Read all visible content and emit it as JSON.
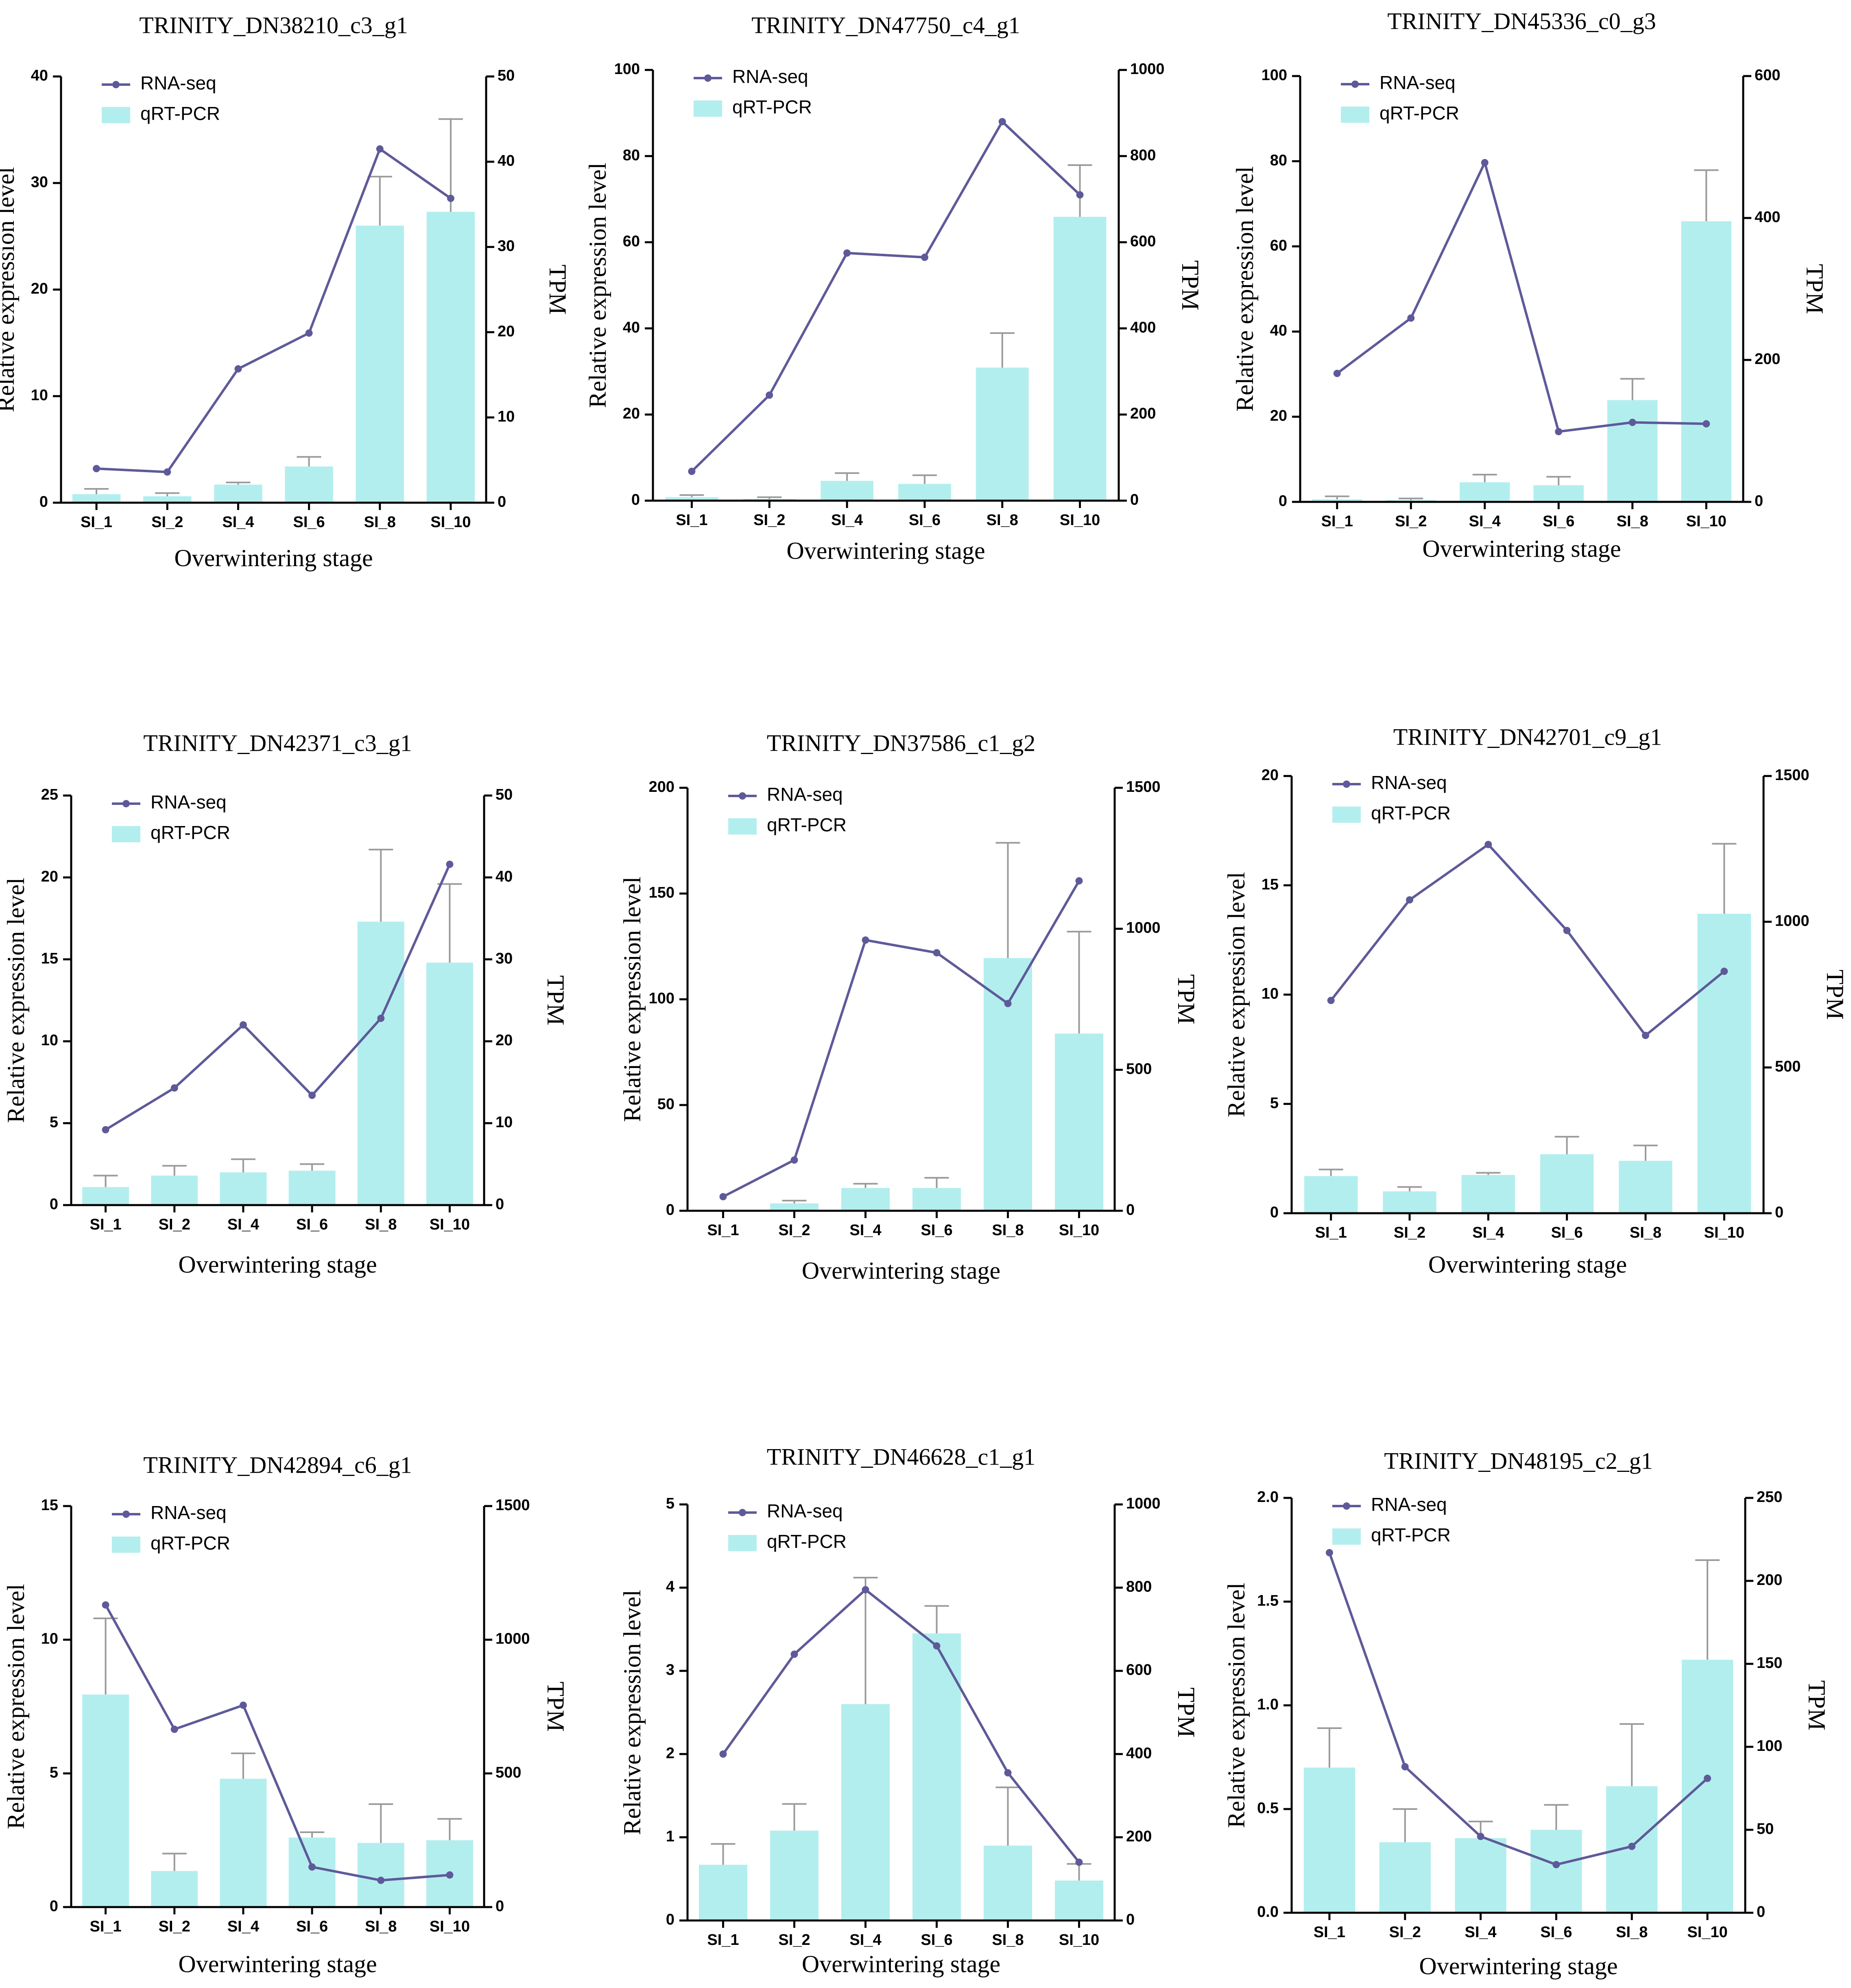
{
  "figure": {
    "colors": {
      "bar": "#b3eeee",
      "line": "#5e5a99",
      "axis": "#000000",
      "error": "#9a9a9a"
    }
  },
  "chart_data": [
    {
      "type": "bar",
      "title": "TRINITY_DN38210_c3_g1",
      "xlabel": "Overwintering stage",
      "ylabel": "Relative expression level",
      "y2label": "TPM",
      "legend": {
        "line": "RNA-seq",
        "bar": "qRT-PCR",
        "placement": "top-left"
      },
      "categories": [
        "SI_1",
        "SI_2",
        "SI_4",
        "SI_6",
        "SI_8",
        "SI_10"
      ],
      "ylim": [
        0,
        40
      ],
      "yticks": [
        "0",
        "10",
        "20",
        "30",
        "40"
      ],
      "y2lim": [
        0,
        50
      ],
      "y2ticks": [
        "0",
        "10",
        "20",
        "30",
        "40",
        "50"
      ],
      "series": [
        {
          "name": "qRT-PCR",
          "axis": "left",
          "values": [
            0.8,
            0.6,
            1.7,
            3.4,
            26.0,
            27.3
          ],
          "errors": [
            1.3,
            0.9,
            1.9,
            4.3,
            30.6,
            36.0
          ]
        },
        {
          "name": "RNA-seq",
          "axis": "right",
          "values": [
            4.0,
            3.6,
            15.7,
            19.9,
            41.5,
            35.7
          ]
        }
      ]
    },
    {
      "type": "bar",
      "title": "TRINITY_DN47750_c4_g1",
      "xlabel": "Overwintering stage",
      "ylabel": "Relative expression level",
      "y2label": "TPM",
      "legend": {
        "line": "RNA-seq",
        "bar": "qRT-PCR",
        "placement": "top-left"
      },
      "categories": [
        "SI_1",
        "SI_2",
        "SI_4",
        "SI_6",
        "SI_8",
        "SI_10"
      ],
      "ylim": [
        0,
        100
      ],
      "yticks": [
        "0",
        "20",
        "40",
        "60",
        "80",
        "100"
      ],
      "y2lim": [
        0,
        1000
      ],
      "y2ticks": [
        "0",
        "200",
        "400",
        "600",
        "800",
        "1000"
      ],
      "series": [
        {
          "name": "qRT-PCR",
          "axis": "left",
          "values": [
            0.8,
            0.4,
            4.6,
            3.9,
            30.9,
            65.9
          ],
          "errors": [
            1.3,
            0.8,
            6.4,
            5.9,
            38.9,
            77.9
          ]
        },
        {
          "name": "RNA-seq",
          "axis": "right",
          "values": [
            68,
            245,
            575,
            565,
            880,
            710
          ]
        }
      ]
    },
    {
      "type": "bar",
      "title": "TRINITY_DN45336_c0_g3",
      "xlabel": "Overwintering stage",
      "ylabel": "Relative expression level",
      "y2label": "TPM",
      "legend": {
        "line": "RNA-seq",
        "bar": "qRT-PCR",
        "placement": "top-left"
      },
      "categories": [
        "SI_1",
        "SI_2",
        "SI_4",
        "SI_6",
        "SI_8",
        "SI_10"
      ],
      "ylim": [
        0,
        100
      ],
      "yticks": [
        "0",
        "20",
        "40",
        "60",
        "80",
        "100"
      ],
      "y2lim": [
        0,
        600
      ],
      "y2ticks": [
        "0",
        "200",
        "400",
        "600"
      ],
      "series": [
        {
          "name": "qRT-PCR",
          "axis": "left",
          "values": [
            0.6,
            0.4,
            4.6,
            3.9,
            23.9,
            65.9
          ],
          "errors": [
            1.3,
            0.8,
            6.4,
            5.9,
            28.9,
            77.9
          ]
        },
        {
          "name": "RNA-seq",
          "axis": "right",
          "values": [
            181,
            259,
            478,
            99,
            112,
            110
          ]
        }
      ]
    },
    {
      "type": "bar",
      "title": "TRINITY_DN42371_c3_g1",
      "xlabel": "Overwintering stage",
      "ylabel": "Relative expression level",
      "y2label": "TPM",
      "legend": {
        "line": "RNA-seq",
        "bar": "qRT-PCR",
        "placement": "top-left"
      },
      "categories": [
        "SI_1",
        "SI_2",
        "SI_4",
        "SI_6",
        "SI_8",
        "SI_10"
      ],
      "ylim": [
        0,
        25
      ],
      "yticks": [
        "0",
        "5",
        "10",
        "15",
        "20",
        "25"
      ],
      "y2lim": [
        0,
        50
      ],
      "y2ticks": [
        "0",
        "10",
        "20",
        "30",
        "40",
        "50"
      ],
      "series": [
        {
          "name": "qRT-PCR",
          "axis": "left",
          "values": [
            1.1,
            1.8,
            2.0,
            2.1,
            17.3,
            14.8
          ],
          "errors": [
            1.8,
            2.4,
            2.8,
            2.5,
            21.7,
            19.6
          ]
        },
        {
          "name": "RNA-seq",
          "axis": "right",
          "values": [
            9.2,
            14.3,
            22.0,
            13.4,
            22.8,
            41.6
          ]
        }
      ]
    },
    {
      "type": "bar",
      "title": "TRINITY_DN37586_c1_g2",
      "xlabel": "Overwintering stage",
      "ylabel": "Relative expression level",
      "y2label": "TPM",
      "legend": {
        "line": "RNA-seq",
        "bar": "qRT-PCR",
        "placement": "top-left"
      },
      "categories": [
        "SI_1",
        "SI_2",
        "SI_4",
        "SI_6",
        "SI_8",
        "SI_10"
      ],
      "ylim": [
        0,
        200
      ],
      "yticks": [
        "0",
        "50",
        "100",
        "150",
        "200"
      ],
      "y2lim": [
        0,
        1500
      ],
      "y2ticks": [
        "0",
        "500",
        "1000",
        "1500"
      ],
      "series": [
        {
          "name": "qRT-PCR",
          "axis": "left",
          "values": [
            0,
            3.5,
            10.8,
            10.8,
            119.5,
            83.8
          ],
          "errors": [
            0,
            4.8,
            12.8,
            15.6,
            174.0,
            132.0
          ]
        },
        {
          "name": "RNA-seq",
          "axis": "right",
          "values": [
            50,
            180,
            960,
            915,
            735,
            1170
          ]
        }
      ]
    },
    {
      "type": "bar",
      "title": "TRINITY_DN42701_c9_g1",
      "xlabel": "Overwintering stage",
      "ylabel": "Relative expression level",
      "y2label": "TPM",
      "legend": {
        "line": "RNA-seq",
        "bar": "qRT-PCR",
        "placement": "top-left"
      },
      "categories": [
        "SI_1",
        "SI_2",
        "SI_4",
        "SI_6",
        "SI_8",
        "SI_10"
      ],
      "ylim": [
        0,
        20
      ],
      "yticks": [
        "0",
        "5",
        "10",
        "15",
        "20"
      ],
      "y2lim": [
        0,
        1500
      ],
      "y2ticks": [
        "0",
        "500",
        "1000",
        "1500"
      ],
      "series": [
        {
          "name": "qRT-PCR",
          "axis": "left",
          "values": [
            1.7,
            1.0,
            1.75,
            2.7,
            2.4,
            13.7
          ],
          "errors": [
            2.0,
            1.2,
            1.85,
            3.5,
            3.1,
            16.9
          ]
        },
        {
          "name": "RNA-seq",
          "axis": "right",
          "values": [
            730,
            1075,
            1265,
            970,
            610,
            830
          ]
        }
      ]
    },
    {
      "type": "bar",
      "title": "TRINITY_DN42894_c6_g1",
      "xlabel": "Overwintering stage",
      "ylabel": "Relative expression level",
      "y2label": "TPM",
      "legend": {
        "line": "RNA-seq",
        "bar": "qRT-PCR",
        "placement": "top-left"
      },
      "categories": [
        "SI_1",
        "SI_2",
        "SI_4",
        "SI_6",
        "SI_8",
        "SI_10"
      ],
      "ylim": [
        0,
        15
      ],
      "yticks": [
        "0",
        "5",
        "10",
        "15"
      ],
      "y2lim": [
        0,
        1500
      ],
      "y2ticks": [
        "0",
        "500",
        "1000",
        "1500"
      ],
      "series": [
        {
          "name": "qRT-PCR",
          "axis": "left",
          "values": [
            7.95,
            1.35,
            4.8,
            2.6,
            2.4,
            2.5
          ],
          "errors": [
            10.8,
            2.0,
            5.75,
            2.8,
            3.85,
            3.3
          ]
        },
        {
          "name": "RNA-seq",
          "axis": "right",
          "values": [
            1130,
            665,
            755,
            150,
            100,
            120
          ]
        }
      ]
    },
    {
      "type": "bar",
      "title": "TRINITY_DN46628_c1_g1",
      "xlabel": "Overwintering stage",
      "ylabel": "Relative expression level",
      "y2label": "TPM",
      "legend": {
        "line": "RNA-seq",
        "bar": "qRT-PCR",
        "placement": "top-left"
      },
      "categories": [
        "SI_1",
        "SI_2",
        "SI_4",
        "SI_6",
        "SI_8",
        "SI_10"
      ],
      "ylim": [
        0,
        5
      ],
      "yticks": [
        "0",
        "1",
        "2",
        "3",
        "4",
        "5"
      ],
      "y2lim": [
        0,
        1000
      ],
      "y2ticks": [
        "0",
        "200",
        "400",
        "600",
        "800",
        "1000"
      ],
      "series": [
        {
          "name": "qRT-PCR",
          "axis": "left",
          "values": [
            0.67,
            1.08,
            2.6,
            3.45,
            0.9,
            0.48
          ],
          "errors": [
            0.92,
            1.4,
            4.12,
            3.78,
            1.6,
            0.68
          ]
        },
        {
          "name": "RNA-seq",
          "axis": "right",
          "values": [
            400,
            640,
            795,
            660,
            355,
            140
          ]
        }
      ]
    },
    {
      "type": "bar",
      "title": "TRINITY_DN48195_c2_g1",
      "xlabel": "Overwintering stage",
      "ylabel": "Relative expression level",
      "y2label": "TPM",
      "legend": {
        "line": "RNA-seq",
        "bar": "qRT-PCR",
        "placement": "top-left"
      },
      "categories": [
        "SI_1",
        "SI_2",
        "SI_4",
        "SI_6",
        "SI_8",
        "SI_10"
      ],
      "ylim": [
        0,
        2.0
      ],
      "yticks": [
        "0.0",
        "0.5",
        "1.0",
        "1.5",
        "2.0"
      ],
      "y2lim": [
        0,
        250
      ],
      "y2ticks": [
        "0",
        "50",
        "100",
        "150",
        "200",
        "250"
      ],
      "series": [
        {
          "name": "qRT-PCR",
          "axis": "left",
          "values": [
            0.7,
            0.34,
            0.36,
            0.4,
            0.61,
            1.22
          ],
          "errors": [
            0.89,
            0.5,
            0.44,
            0.52,
            0.91,
            1.7
          ]
        },
        {
          "name": "RNA-seq",
          "axis": "right",
          "values": [
            217,
            88,
            46,
            29,
            40,
            81
          ]
        }
      ]
    }
  ]
}
